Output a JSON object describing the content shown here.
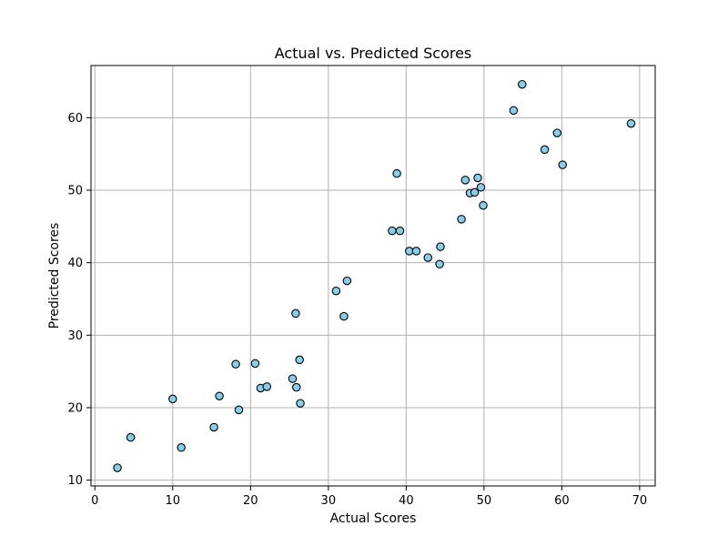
{
  "chart_data": {
    "type": "scatter",
    "title": "Actual vs. Predicted Scores",
    "xlabel": "Actual Scores",
    "ylabel": "Predicted Scores",
    "xlim": [
      -0.5,
      72
    ],
    "ylim": [
      9.2,
      67.2
    ],
    "xticks": [
      0,
      10,
      20,
      30,
      40,
      50,
      60,
      70
    ],
    "yticks": [
      10,
      20,
      30,
      40,
      50,
      60
    ],
    "grid": true,
    "marker_fill": "#87ceeb",
    "marker_edge": "#000000",
    "points": [
      {
        "x": 2.9,
        "y": 11.7
      },
      {
        "x": 4.6,
        "y": 15.9
      },
      {
        "x": 10.0,
        "y": 21.2
      },
      {
        "x": 11.1,
        "y": 14.5
      },
      {
        "x": 15.3,
        "y": 17.3
      },
      {
        "x": 16.0,
        "y": 21.6
      },
      {
        "x": 18.1,
        "y": 26.0
      },
      {
        "x": 18.5,
        "y": 19.7
      },
      {
        "x": 20.6,
        "y": 26.1
      },
      {
        "x": 21.3,
        "y": 22.7
      },
      {
        "x": 22.1,
        "y": 22.9
      },
      {
        "x": 25.4,
        "y": 24.0
      },
      {
        "x": 25.8,
        "y": 33.0
      },
      {
        "x": 25.9,
        "y": 22.8
      },
      {
        "x": 26.3,
        "y": 26.6
      },
      {
        "x": 26.4,
        "y": 20.6
      },
      {
        "x": 31.0,
        "y": 36.1
      },
      {
        "x": 32.0,
        "y": 32.6
      },
      {
        "x": 32.4,
        "y": 37.5
      },
      {
        "x": 38.2,
        "y": 44.4
      },
      {
        "x": 38.8,
        "y": 52.3
      },
      {
        "x": 39.2,
        "y": 44.4
      },
      {
        "x": 40.4,
        "y": 41.6
      },
      {
        "x": 41.3,
        "y": 41.6
      },
      {
        "x": 42.8,
        "y": 40.7
      },
      {
        "x": 44.3,
        "y": 39.8
      },
      {
        "x": 44.4,
        "y": 42.2
      },
      {
        "x": 47.1,
        "y": 46.0
      },
      {
        "x": 47.6,
        "y": 51.4
      },
      {
        "x": 48.2,
        "y": 49.6
      },
      {
        "x": 48.8,
        "y": 49.7
      },
      {
        "x": 49.2,
        "y": 51.7
      },
      {
        "x": 49.6,
        "y": 50.4
      },
      {
        "x": 49.9,
        "y": 47.9
      },
      {
        "x": 53.8,
        "y": 61.0
      },
      {
        "x": 54.9,
        "y": 64.6
      },
      {
        "x": 57.8,
        "y": 55.6
      },
      {
        "x": 59.4,
        "y": 57.9
      },
      {
        "x": 60.1,
        "y": 53.5
      },
      {
        "x": 68.9,
        "y": 59.2
      }
    ]
  }
}
